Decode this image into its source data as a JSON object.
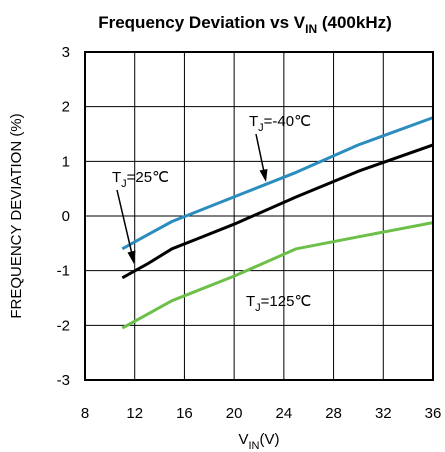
{
  "chart_data": {
    "type": "line",
    "title": {
      "main": "Frequency Deviation vs V",
      "sub": "IN",
      "tail": " (400kHz)"
    },
    "xlabel": {
      "main": "V",
      "sub": "IN",
      "tail": "(V)"
    },
    "ylabel": "FREQUENCY DEVIATION (%)",
    "xlim": [
      8,
      36
    ],
    "ylim": [
      -3,
      3
    ],
    "xticks": [
      8,
      12,
      16,
      20,
      24,
      28,
      32,
      36
    ],
    "yticks": [
      3,
      2,
      1,
      0,
      -1,
      -2,
      -3
    ],
    "grid": true,
    "series": [
      {
        "name": "TJ=-40℃",
        "color": "#2b8cbe",
        "x": [
          11,
          13,
          15,
          17,
          20,
          25,
          30,
          36
        ],
        "y": [
          -0.6,
          -0.35,
          -0.1,
          0.08,
          0.35,
          0.8,
          1.3,
          1.8
        ]
      },
      {
        "name": "TJ=25℃",
        "color": "#000000",
        "x": [
          11,
          13,
          15,
          17,
          20,
          25,
          30,
          36
        ],
        "y": [
          -1.13,
          -0.88,
          -0.6,
          -0.42,
          -0.15,
          0.35,
          0.82,
          1.3
        ]
      },
      {
        "name": "TJ=125℃",
        "color": "#6cc04a",
        "x": [
          11,
          13,
          15,
          20,
          25,
          30,
          36
        ],
        "y": [
          -2.05,
          -1.8,
          -1.55,
          -1.1,
          -0.6,
          -0.38,
          -0.12
        ]
      }
    ],
    "annotations": [
      {
        "main": "T",
        "sub": "J",
        "tail": "=-40℃"
      },
      {
        "main": "T",
        "sub": "J",
        "tail": "=25℃"
      },
      {
        "main": "T",
        "sub": "J",
        "tail": "=125℃"
      }
    ]
  }
}
